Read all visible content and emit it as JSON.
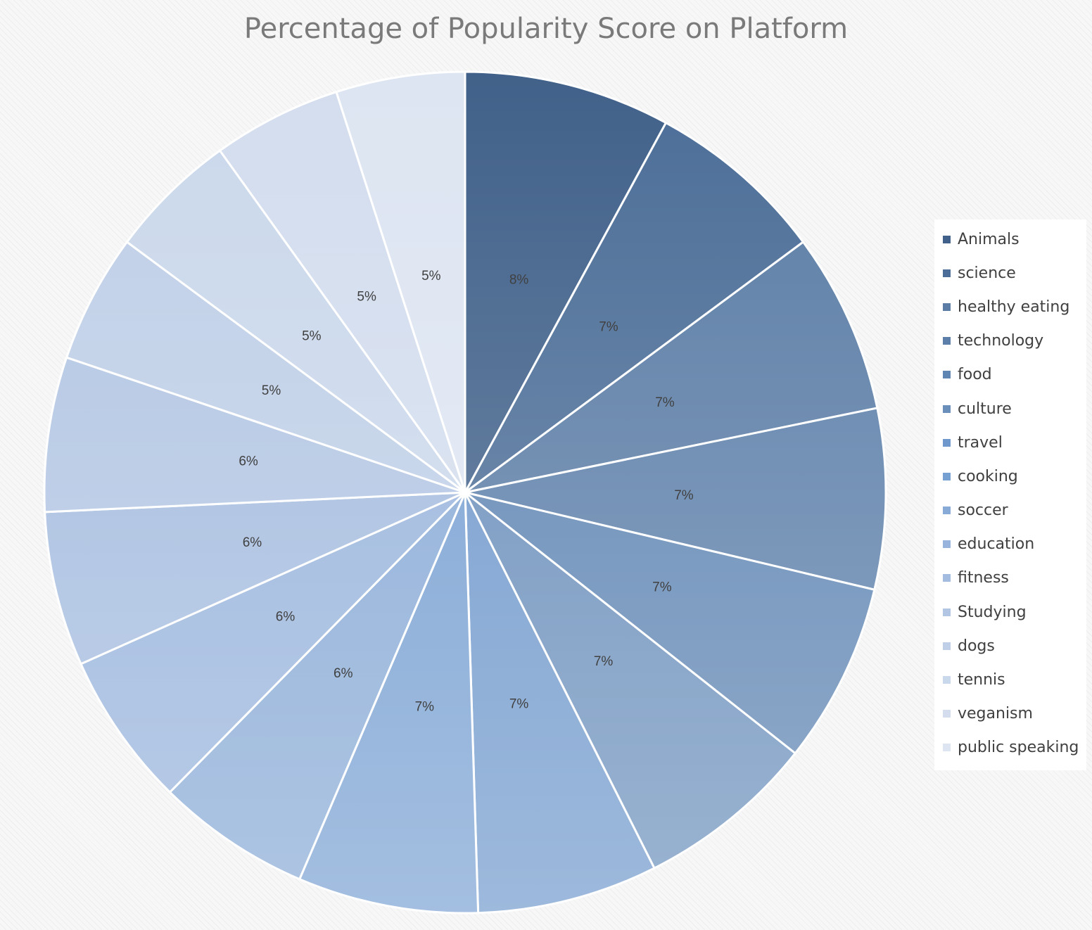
{
  "chart_data": {
    "type": "pie",
    "title": "Percentage of Popularity Score on Platform",
    "legend_position": "right",
    "slices": [
      {
        "name": "Animals",
        "value": 8,
        "label": "8%",
        "color": "#41618a"
      },
      {
        "name": "science",
        "value": 7,
        "label": "7%",
        "color": "#4b6d97"
      },
      {
        "name": "healthy eating",
        "value": 7,
        "label": "7%",
        "color": "#5a7ca5"
      },
      {
        "name": "technology",
        "value": 7,
        "label": "7%",
        "color": "#5c7fa9"
      },
      {
        "name": "food",
        "value": 7,
        "label": "7%",
        "color": "#5f85b3"
      },
      {
        "name": "culture",
        "value": 7,
        "label": "7%",
        "color": "#6b8fbb"
      },
      {
        "name": "travel",
        "value": 7,
        "label": "7%",
        "color": "#6f98cc"
      },
      {
        "name": "cooking",
        "value": 7,
        "label": "7%",
        "color": "#77a0d2"
      },
      {
        "name": "soccer",
        "value": 6,
        "label": "6%",
        "color": "#88aad6"
      },
      {
        "name": "education",
        "value": 6,
        "label": "6%",
        "color": "#98b4dc"
      },
      {
        "name": "fitness",
        "value": 6,
        "label": "6%",
        "color": "#a4bcdf"
      },
      {
        "name": "Studying",
        "value": 6,
        "label": "6%",
        "color": "#b2c5e3"
      },
      {
        "name": "dogs",
        "value": 5,
        "label": "5%",
        "color": "#bfcfe7"
      },
      {
        "name": "tennis",
        "value": 5,
        "label": "5%",
        "color": "#cad8eb"
      },
      {
        "name": "veganism",
        "value": 5,
        "label": "5%",
        "color": "#d3ddee"
      },
      {
        "name": "public speaking",
        "value": 5,
        "label": "5%",
        "color": "#dde5f2"
      }
    ]
  }
}
